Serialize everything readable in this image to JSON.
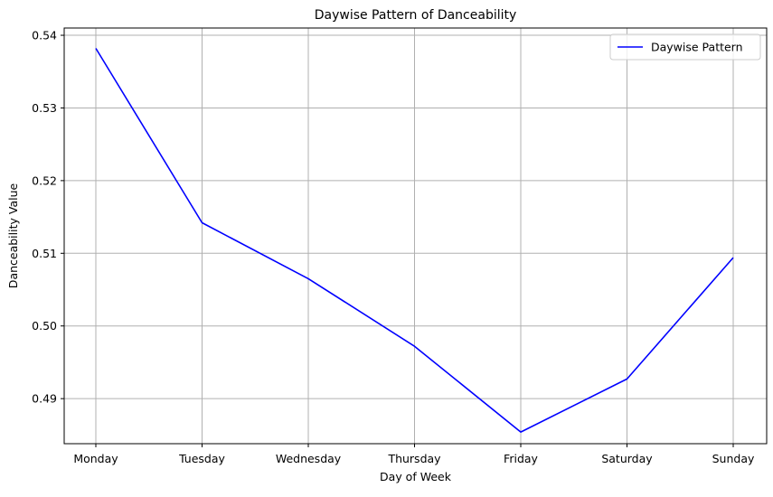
{
  "chart_data": {
    "type": "line",
    "title": "Daywise Pattern of Danceability",
    "xlabel": "Day of Week",
    "ylabel": "Danceability Value",
    "categories": [
      "Monday",
      "Tuesday",
      "Wednesday",
      "Thursday",
      "Friday",
      "Saturday",
      "Sunday"
    ],
    "series": [
      {
        "name": "Daywise Pattern",
        "color": "#0000ff",
        "values": [
          0.5382,
          0.5142,
          0.5065,
          0.4972,
          0.4854,
          0.4927,
          0.5094
        ]
      }
    ],
    "y_ticks": [
      "0.49",
      "0.50",
      "0.51",
      "0.52",
      "0.53",
      "0.54"
    ],
    "ylim": [
      0.4838,
      0.541
    ],
    "grid": true,
    "grid_color": "#b0b0b0",
    "legend_position": "top-right"
  }
}
